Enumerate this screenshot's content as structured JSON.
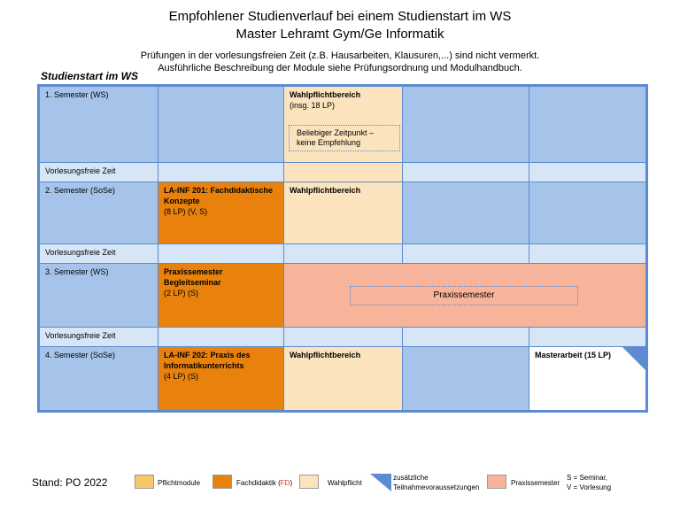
{
  "header": {
    "title_line1": "Empfohlener Studienverlauf bei einem Studienstart im WS",
    "title_line2": "Master Lehramt Gym/Ge Informatik",
    "note_line1": "Prüfungen in der vorlesungsfreien Zeit (z.B. Hausarbeiten, Klausuren,...) sind nicht vermerkt.",
    "note_line2": "Ausführliche Beschreibung der Module siehe Prüfungsordnung und Modulhandbuch."
  },
  "studienstart_label": "Studienstart im WS",
  "rows": {
    "sem1": "1. Semester (WS)",
    "vf1": "Vorlesungsfreie Zeit",
    "sem2": "2. Semester (SoSe)",
    "vf2": "Vorlesungsfreie Zeit",
    "sem3": "3. Semester (WS)",
    "vf3": "Vorlesungsfreie Zeit",
    "sem4": "4. Semester (SoSe)"
  },
  "modules": {
    "wahlpflicht1_title": "Wahlpflichtbereich",
    "wahlpflicht1_sub": "(insg. 18 LP)",
    "zeitpunkt_line1": "Beliebiger Zeitpunkt –",
    "zeitpunkt_line2": "keine Empfehlung",
    "lainf201_line1": "LA-INF 201: Fachdidaktische",
    "lainf201_line2": "Konzepte",
    "lainf201_sub": "(8 LP) (V, S)",
    "wahlpflicht2_title": "Wahlpflichtbereich",
    "praxis_begleit_line1": "Praxissemester",
    "praxis_begleit_line2": "Begleitseminar",
    "praxis_begleit_sub": "(2 LP) (S)",
    "praxissemester": "Praxissemester",
    "lainf202_line1": "LA-INF 202: Praxis des",
    "lainf202_line2": "Informatikunterrichts",
    "lainf202_sub": "(4 LP) (S)",
    "wahlpflicht3_title": "Wahlpflichtbereich",
    "masterarbeit": "Masterarbeit (15 LP)"
  },
  "footer": {
    "stand": "Stand: PO 2022",
    "legend_pflicht": "Pflichtmodule",
    "legend_fd_prefix": "Fachdidaktik (",
    "legend_fd_abbr": "FD",
    "legend_fd_suffix": ")",
    "legend_wahlpflicht": "Wahlpflicht",
    "legend_zusatz_line1": "zusätzliche",
    "legend_zusatz_line2": "Teilnahmevoraussetzungen",
    "legend_praxis": "Praxissemester",
    "legend_s": "S = Seminar,",
    "legend_v": "V = Vorlesung"
  },
  "colors": {
    "semester_blue": "#a6c4ea",
    "break_blue": "#d6e6f7",
    "pflicht_yellow": "#f6c86a",
    "fachdidaktik_orange": "#e8820c",
    "wahlpflicht_tan": "#fbe4bd",
    "praxis_salmon": "#f7b49a",
    "border_blue": "#5b8bd0",
    "fd_red": "#d9331f"
  }
}
